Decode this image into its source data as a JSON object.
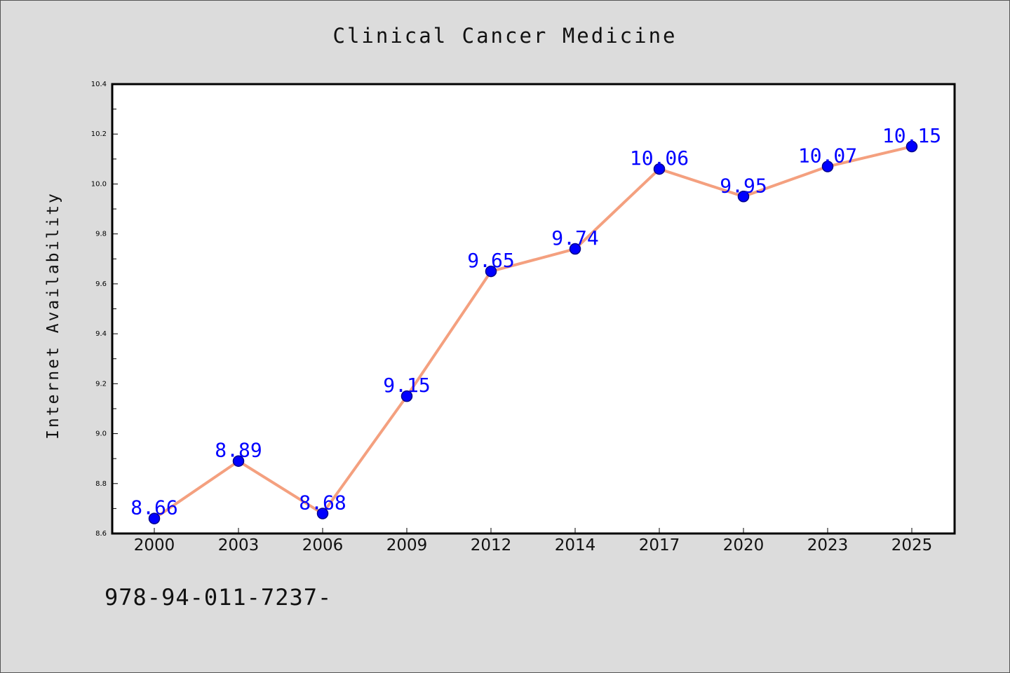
{
  "footer_text": "978-94-011-7237-",
  "chart_data": {
    "type": "line",
    "title": "Clinical Cancer Medicine",
    "xlabel": "",
    "ylabel": "Internet Availability",
    "categories": [
      "2000",
      "2003",
      "2006",
      "2009",
      "2012",
      "2014",
      "2017",
      "2020",
      "2023",
      "2025"
    ],
    "values": [
      8.66,
      8.89,
      8.68,
      9.15,
      9.65,
      9.74,
      10.06,
      9.95,
      10.07,
      10.15
    ],
    "value_labels": [
      "8.66",
      "8.89",
      "8.68",
      "9.15",
      "9.65",
      "9.74",
      "10.06",
      "9.95",
      "10.07",
      "10.15"
    ],
    "ylim": [
      8.6,
      10.4
    ],
    "yticks": [
      "8.6",
      "8.8",
      "9.0",
      "9.2",
      "9.4",
      "9.6",
      "9.8",
      "10.0",
      "10.2",
      "10.4"
    ],
    "grid": false,
    "colors": {
      "line": "#f4a07f",
      "marker": "#0000ff",
      "marker_edge": "#00008b",
      "value_label": "#0000ff",
      "plot_bg": "#ffffff",
      "page_bg": "#dcdcdc"
    }
  }
}
